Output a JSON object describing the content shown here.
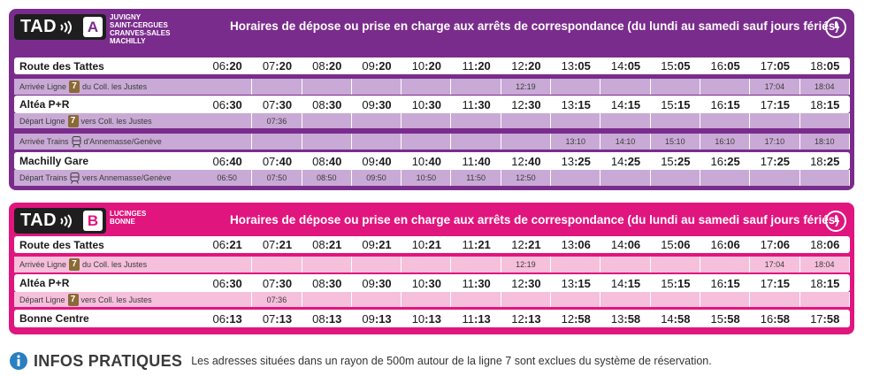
{
  "colors": {
    "panelA": "#7a2c8c",
    "panelB": "#e0157e",
    "line7": "#8a6a35"
  },
  "panelA": {
    "tad": "TAD",
    "letter": "A",
    "communes": [
      "JUVIGNY",
      "SAINT-CERGUES",
      "CRANVES-SALES",
      "MACHILLY"
    ],
    "title": "Horaires de dépose ou prise en charge aux arrêts de correspondance (du lundi au samedi sauf jours fériés)",
    "rows": [
      {
        "type": "main",
        "label": "Route des Tattes",
        "times": [
          [
            "06",
            ":20"
          ],
          [
            "07",
            ":20"
          ],
          [
            "08",
            ":20"
          ],
          [
            "09",
            ":20"
          ],
          [
            "10",
            ":20"
          ],
          [
            "11",
            ":20"
          ],
          [
            "12",
            ":20"
          ],
          [
            "13",
            ":05"
          ],
          [
            "14",
            ":05"
          ],
          [
            "15",
            ":05"
          ],
          [
            "16",
            ":05"
          ],
          [
            "17",
            ":05"
          ],
          [
            "18",
            ":05"
          ]
        ]
      },
      {
        "type": "conn",
        "pre": "Arrivée Ligne",
        "icon": "line-7-badge",
        "badge": "7",
        "post": "du Coll. les Justes",
        "times": [
          "",
          "",
          "",
          "",
          "",
          "",
          "12:19",
          "",
          "",
          "",
          "",
          "17:04",
          "18:04"
        ]
      },
      {
        "type": "main",
        "label": "Altéa P+R",
        "times": [
          [
            "06",
            ":30"
          ],
          [
            "07",
            ":30"
          ],
          [
            "08",
            ":30"
          ],
          [
            "09",
            ":30"
          ],
          [
            "10",
            ":30"
          ],
          [
            "11",
            ":30"
          ],
          [
            "12",
            ":30"
          ],
          [
            "13",
            ":15"
          ],
          [
            "14",
            ":15"
          ],
          [
            "15",
            ":15"
          ],
          [
            "16",
            ":15"
          ],
          [
            "17",
            ":15"
          ],
          [
            "18",
            ":15"
          ]
        ]
      },
      {
        "type": "conn",
        "pre": "Départ Ligne",
        "icon": "line-7-badge",
        "badge": "7",
        "post": "vers Coll. les Justes",
        "times": [
          "",
          "07:36",
          "",
          "",
          "",
          "",
          "",
          "",
          "",
          "",
          "",
          "",
          ""
        ]
      },
      {
        "type": "conn",
        "pre": "Arrivée Trains",
        "icon": "train-icon",
        "badge": "",
        "post": "d'Annemasse/Genève",
        "times": [
          "",
          "",
          "",
          "",
          "",
          "",
          "",
          "13:10",
          "14:10",
          "15:10",
          "16:10",
          "17:10",
          "18:10"
        ]
      },
      {
        "type": "main",
        "label": "Machilly Gare",
        "times": [
          [
            "06",
            ":40"
          ],
          [
            "07",
            ":40"
          ],
          [
            "08",
            ":40"
          ],
          [
            "09",
            ":40"
          ],
          [
            "10",
            ":40"
          ],
          [
            "11",
            ":40"
          ],
          [
            "12",
            ":40"
          ],
          [
            "13",
            ":25"
          ],
          [
            "14",
            ":25"
          ],
          [
            "15",
            ":25"
          ],
          [
            "16",
            ":25"
          ],
          [
            "17",
            ":25"
          ],
          [
            "18",
            ":25"
          ]
        ]
      },
      {
        "type": "conn",
        "pre": "Départ Trains",
        "icon": "train-icon",
        "badge": "",
        "post": "vers Annemasse/Genève",
        "times": [
          "06:50",
          "07:50",
          "08:50",
          "09:50",
          "10:50",
          "11:50",
          "12:50",
          "",
          "",
          "",
          "",
          "",
          ""
        ]
      }
    ]
  },
  "panelB": {
    "tad": "TAD",
    "letter": "B",
    "communes": [
      "LUCINGES",
      "BONNE"
    ],
    "title": "Horaires de dépose ou prise en charge aux arrêts de correspondance (du lundi au samedi sauf jours fériés)",
    "rows": [
      {
        "type": "main",
        "label": "Route des Tattes",
        "times": [
          [
            "06",
            ":21"
          ],
          [
            "07",
            ":21"
          ],
          [
            "08",
            ":21"
          ],
          [
            "09",
            ":21"
          ],
          [
            "10",
            ":21"
          ],
          [
            "11",
            ":21"
          ],
          [
            "12",
            ":21"
          ],
          [
            "13",
            ":06"
          ],
          [
            "14",
            ":06"
          ],
          [
            "15",
            ":06"
          ],
          [
            "16",
            ":06"
          ],
          [
            "17",
            ":06"
          ],
          [
            "18",
            ":06"
          ]
        ]
      },
      {
        "type": "conn",
        "pre": "Arrivée Ligne",
        "icon": "line-7-badge",
        "badge": "7",
        "post": "du Coll. les Justes",
        "times": [
          "",
          "",
          "",
          "",
          "",
          "",
          "12:19",
          "",
          "",
          "",
          "",
          "17:04",
          "18:04"
        ]
      },
      {
        "type": "main",
        "label": "Altéa P+R",
        "times": [
          [
            "06",
            ":30"
          ],
          [
            "07",
            ":30"
          ],
          [
            "08",
            ":30"
          ],
          [
            "09",
            ":30"
          ],
          [
            "10",
            ":30"
          ],
          [
            "11",
            ":30"
          ],
          [
            "12",
            ":30"
          ],
          [
            "13",
            ":15"
          ],
          [
            "14",
            ":15"
          ],
          [
            "15",
            ":15"
          ],
          [
            "16",
            ":15"
          ],
          [
            "17",
            ":15"
          ],
          [
            "18",
            ":15"
          ]
        ]
      },
      {
        "type": "conn",
        "pre": "Départ Ligne",
        "icon": "line-7-badge",
        "badge": "7",
        "post": "vers Coll. les Justes",
        "times": [
          "",
          "07:36",
          "",
          "",
          "",
          "",
          "",
          "",
          "",
          "",
          "",
          "",
          ""
        ]
      },
      {
        "type": "main",
        "label": "Bonne Centre",
        "times": [
          [
            "06",
            ":13"
          ],
          [
            "07",
            ":13"
          ],
          [
            "08",
            ":13"
          ],
          [
            "09",
            ":13"
          ],
          [
            "10",
            ":13"
          ],
          [
            "11",
            ":13"
          ],
          [
            "12",
            ":13"
          ],
          [
            "12",
            ":58"
          ],
          [
            "13",
            ":58"
          ],
          [
            "14",
            ":58"
          ],
          [
            "15",
            ":58"
          ],
          [
            "16",
            ":58"
          ],
          [
            "17",
            ":58"
          ]
        ]
      }
    ]
  },
  "footer": {
    "icon": "info-icon",
    "title": "INFOS PRATIQUES",
    "text": "Les adresses situées dans un rayon de 500m autour de la ligne 7 sont exclues du système de réservation."
  }
}
